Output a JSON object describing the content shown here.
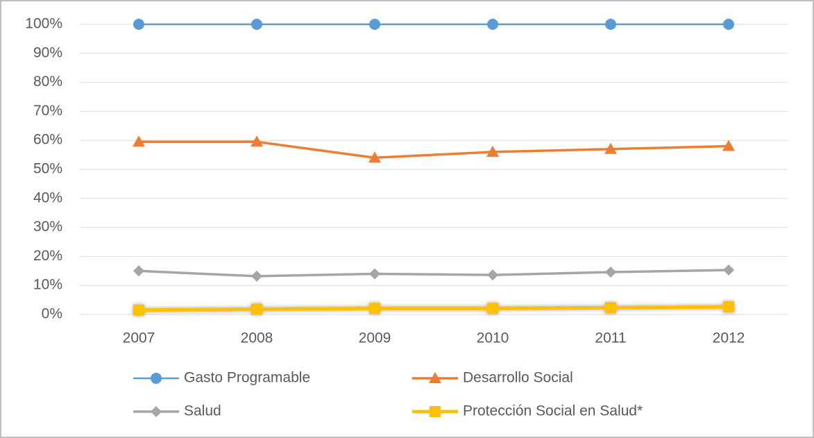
{
  "chart_data": {
    "type": "line",
    "categories": [
      "2007",
      "2008",
      "2009",
      "2010",
      "2011",
      "2012"
    ],
    "series": [
      {
        "name": "Gasto Programable",
        "color": "#5b9bd5",
        "marker": "circle",
        "values": [
          100,
          100,
          100,
          100,
          100,
          100
        ]
      },
      {
        "name": "Desarrollo Social",
        "color": "#ed7d31",
        "marker": "triangle",
        "values": [
          59.5,
          59.5,
          54,
          56,
          57,
          58
        ]
      },
      {
        "name": "Salud",
        "color": "#a5a5a5",
        "marker": "diamond",
        "values": [
          15,
          13.2,
          14,
          13.6,
          14.6,
          15.3
        ]
      },
      {
        "name": "Protección Social en Salud*",
        "color": "#ffc000",
        "marker": "square",
        "values": [
          1.5,
          1.8,
          2.1,
          2.1,
          2.3,
          2.6
        ]
      }
    ],
    "ylim": [
      0,
      100
    ],
    "yticks": [
      {
        "value": 0,
        "label": "0%"
      },
      {
        "value": 10,
        "label": "10%"
      },
      {
        "value": 20,
        "label": "20%"
      },
      {
        "value": 30,
        "label": "30%"
      },
      {
        "value": 40,
        "label": "40%"
      },
      {
        "value": 50,
        "label": "50%"
      },
      {
        "value": 60,
        "label": "60%"
      },
      {
        "value": 70,
        "label": "70%"
      },
      {
        "value": 80,
        "label": "80%"
      },
      {
        "value": 90,
        "label": "90%"
      },
      {
        "value": 100,
        "label": "100%"
      }
    ],
    "grid": true,
    "legend": "bottom"
  }
}
